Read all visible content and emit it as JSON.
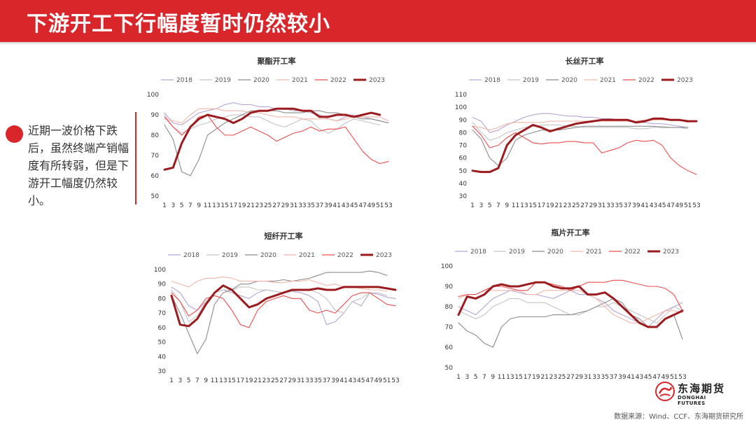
{
  "header": {
    "title": "下游开工下行幅度暂时仍然较小"
  },
  "bullet": {
    "text": "近期一波价格下跌后，虽然终端产销幅度有所转弱，但是下游开工幅度仍然较小。"
  },
  "footer": {
    "logo_cn": "东海期货",
    "logo_en": "DONGHAI FUTURES",
    "source": "数据来源：Wind、CCF、东海期货研究所"
  },
  "colors": {
    "header": "#d9262b",
    "s2018": "#b5a3d6",
    "s2019": "#c4c4c4",
    "s2020": "#8c8c8c",
    "s2021": "#f4b6a8",
    "s2022": "#ef4d4d",
    "s2023": "#9b1b1e"
  },
  "x_ticks": [
    "1",
    "3",
    "5",
    "7",
    "9",
    "11",
    "13",
    "15",
    "17",
    "19",
    "21",
    "23",
    "25",
    "27",
    "29",
    "31",
    "33",
    "35",
    "37",
    "39",
    "41",
    "43",
    "45",
    "47",
    "49",
    "51",
    "53"
  ],
  "chart_data": [
    {
      "type": "line",
      "title": "聚酯开工率",
      "x": [
        1,
        3,
        5,
        7,
        9,
        11,
        13,
        15,
        17,
        19,
        21,
        23,
        25,
        27,
        29,
        31,
        33,
        35,
        37,
        39,
        41,
        43,
        45,
        47,
        49,
        51,
        53
      ],
      "ylim": [
        50,
        100
      ],
      "yticks": [
        50,
        60,
        70,
        80,
        90,
        100
      ],
      "series": [
        {
          "name": "2018",
          "values": [
            91,
            86,
            85,
            88,
            91,
            92,
            93,
            95,
            96,
            95,
            95,
            94,
            94,
            93,
            93,
            92,
            92,
            91,
            90,
            88,
            87,
            89,
            90,
            89,
            88,
            87,
            86
          ]
        },
        {
          "name": "2019",
          "values": [
            90,
            84,
            81,
            83,
            85,
            86,
            88,
            89,
            90,
            90,
            89,
            89,
            87,
            85,
            84,
            86,
            88,
            87,
            83,
            81,
            83,
            86,
            88,
            87,
            86,
            85,
            null
          ]
        },
        {
          "name": "2020",
          "values": [
            85,
            78,
            62,
            60,
            68,
            80,
            83,
            86,
            88,
            90,
            92,
            92,
            92,
            92,
            91,
            91,
            91,
            92,
            92,
            91,
            91,
            90,
            89,
            88,
            88,
            87,
            86
          ]
        },
        {
          "name": "2021",
          "values": [
            88,
            87,
            86,
            90,
            93,
            93,
            93,
            92,
            92,
            92,
            91,
            91,
            90,
            89,
            89,
            89,
            88,
            88,
            88,
            88,
            87,
            88,
            89,
            89,
            89,
            89,
            87
          ]
        },
        {
          "name": "2022",
          "values": [
            89,
            84,
            80,
            84,
            89,
            90,
            84,
            80,
            80,
            82,
            84,
            82,
            80,
            77,
            79,
            81,
            82,
            84,
            82,
            83,
            83,
            84,
            78,
            72,
            68,
            66,
            67
          ]
        },
        {
          "name": "2023",
          "values": [
            63,
            64,
            76,
            84,
            88,
            90,
            89,
            88,
            86,
            88,
            91,
            92,
            92,
            93,
            93,
            93,
            92,
            92,
            89,
            89,
            90,
            90,
            89,
            90,
            91,
            90,
            null
          ]
        }
      ]
    },
    {
      "type": "line",
      "title": "长丝开工率",
      "x": [
        1,
        3,
        5,
        7,
        9,
        11,
        13,
        15,
        17,
        19,
        21,
        23,
        25,
        27,
        29,
        31,
        33,
        35,
        37,
        39,
        41,
        43,
        45,
        47,
        49,
        51,
        53
      ],
      "ylim": [
        30,
        110
      ],
      "yticks": [
        30,
        40,
        50,
        60,
        70,
        80,
        90,
        100,
        110
      ],
      "series": [
        {
          "name": "2018",
          "values": [
            92,
            89,
            80,
            82,
            86,
            89,
            92,
            94,
            95,
            95,
            94,
            93,
            93,
            92,
            92,
            91,
            91,
            90,
            89,
            88,
            88,
            87,
            87,
            86,
            85,
            84,
            null
          ]
        },
        {
          "name": "2019",
          "values": [
            88,
            80,
            74,
            76,
            80,
            82,
            84,
            85,
            86,
            86,
            86,
            85,
            85,
            84,
            84,
            84,
            84,
            84,
            84,
            83,
            83,
            84,
            85,
            84,
            84,
            83,
            null
          ]
        },
        {
          "name": "2020",
          "values": [
            82,
            75,
            60,
            54,
            60,
            74,
            78,
            80,
            82,
            82,
            82,
            83,
            84,
            85,
            85,
            85,
            85,
            85,
            85,
            85,
            85,
            85,
            84,
            84,
            84,
            84,
            null
          ]
        },
        {
          "name": "2021",
          "values": [
            85,
            84,
            82,
            84,
            87,
            88,
            88,
            88,
            88,
            89,
            89,
            89,
            89,
            89,
            89,
            89,
            89,
            89,
            89,
            89,
            90,
            90,
            90,
            90,
            90,
            88,
            null
          ]
        },
        {
          "name": "2022",
          "values": [
            85,
            78,
            68,
            70,
            76,
            80,
            76,
            72,
            71,
            72,
            72,
            73,
            73,
            72,
            72,
            64,
            66,
            68,
            72,
            74,
            73,
            74,
            70,
            60,
            54,
            50,
            47
          ]
        },
        {
          "name": "2023",
          "values": [
            50,
            49,
            49,
            52,
            70,
            78,
            82,
            86,
            84,
            81,
            83,
            85,
            87,
            88,
            89,
            90,
            90,
            90,
            90,
            88,
            89,
            91,
            91,
            90,
            90,
            89,
            89
          ]
        }
      ]
    },
    {
      "type": "line",
      "title": "短纤开工率",
      "x": [
        1,
        3,
        5,
        7,
        9,
        11,
        13,
        15,
        17,
        19,
        21,
        23,
        25,
        27,
        29,
        31,
        33,
        35,
        37,
        39,
        41,
        43,
        45,
        47,
        49,
        51,
        53
      ],
      "ylim": [
        30,
        100
      ],
      "yticks": [
        30,
        40,
        50,
        60,
        70,
        80,
        90,
        100
      ],
      "series": [
        {
          "name": "2018",
          "values": [
            88,
            84,
            75,
            72,
            78,
            84,
            86,
            84,
            82,
            80,
            84,
            86,
            85,
            84,
            85,
            84,
            82,
            78,
            62,
            64,
            70,
            78,
            75,
            84,
            83,
            81,
            80
          ]
        },
        {
          "name": "2019",
          "values": [
            86,
            78,
            64,
            68,
            78,
            84,
            86,
            86,
            88,
            88,
            86,
            86,
            85,
            84,
            85,
            86,
            86,
            84,
            80,
            72,
            70,
            78,
            80,
            84,
            84,
            82,
            null
          ]
        },
        {
          "name": "2020",
          "values": [
            82,
            70,
            56,
            42,
            52,
            76,
            84,
            86,
            90,
            90,
            92,
            92,
            92,
            93,
            92,
            93,
            94,
            96,
            98,
            98,
            98,
            98,
            98,
            99,
            98,
            96,
            null
          ]
        },
        {
          "name": "2021",
          "values": [
            92,
            90,
            88,
            92,
            94,
            94,
            95,
            94,
            92,
            92,
            92,
            92,
            91,
            91,
            92,
            92,
            93,
            91,
            89,
            90,
            88,
            88,
            87,
            86,
            86,
            85,
            null
          ]
        },
        {
          "name": "2022",
          "values": [
            84,
            78,
            68,
            72,
            80,
            82,
            80,
            72,
            62,
            60,
            72,
            78,
            80,
            82,
            80,
            80,
            72,
            70,
            72,
            70,
            76,
            82,
            84,
            84,
            80,
            76,
            75
          ]
        },
        {
          "name": "2023",
          "values": [
            82,
            62,
            61,
            66,
            76,
            84,
            89,
            86,
            80,
            74,
            76,
            80,
            82,
            84,
            86,
            86,
            86,
            87,
            86,
            86,
            88,
            88,
            88,
            88,
            88,
            87,
            86
          ]
        }
      ]
    },
    {
      "type": "line",
      "title": "瓶片开工率",
      "x": [
        1,
        3,
        5,
        7,
        9,
        11,
        13,
        15,
        17,
        19,
        21,
        23,
        25,
        27,
        29,
        31,
        33,
        35,
        37,
        39,
        41,
        43,
        45,
        47,
        49,
        51,
        53
      ],
      "ylim": [
        50,
        100
      ],
      "yticks": [
        50,
        60,
        70,
        80,
        90,
        100
      ],
      "series": [
        {
          "name": "2018",
          "values": [
            80,
            78,
            76,
            80,
            84,
            86,
            88,
            87,
            86,
            86,
            85,
            84,
            86,
            88,
            86,
            86,
            84,
            82,
            78,
            76,
            74,
            72,
            70,
            74,
            78,
            80,
            82
          ]
        },
        {
          "name": "2019",
          "values": [
            78,
            76,
            74,
            76,
            80,
            82,
            84,
            84,
            82,
            82,
            82,
            80,
            78,
            76,
            76,
            78,
            80,
            80,
            82,
            80,
            78,
            76,
            74,
            72,
            76,
            80,
            78
          ]
        },
        {
          "name": "2020",
          "values": [
            72,
            68,
            66,
            62,
            60,
            70,
            74,
            75,
            75,
            75,
            75,
            76,
            76,
            76,
            77,
            78,
            80,
            82,
            84,
            82,
            76,
            74,
            70,
            70,
            74,
            76,
            64
          ]
        },
        {
          "name": "2021",
          "values": [
            84,
            86,
            86,
            88,
            88,
            88,
            88,
            88,
            86,
            86,
            88,
            88,
            88,
            88,
            88,
            86,
            84,
            80,
            76,
            74,
            72,
            72,
            74,
            76,
            78,
            78,
            77
          ]
        },
        {
          "name": "2022",
          "values": [
            85,
            86,
            86,
            88,
            90,
            90,
            89,
            88,
            88,
            92,
            92,
            91,
            90,
            88,
            90,
            92,
            92,
            92,
            93,
            93,
            92,
            91,
            90,
            90,
            89,
            86,
            78
          ]
        },
        {
          "name": "2023",
          "values": [
            76,
            85,
            84,
            86,
            90,
            91,
            90,
            90,
            91,
            92,
            92,
            90,
            89,
            89,
            90,
            86,
            86,
            87,
            84,
            80,
            76,
            72,
            70,
            70,
            74,
            76,
            78
          ]
        }
      ]
    }
  ]
}
